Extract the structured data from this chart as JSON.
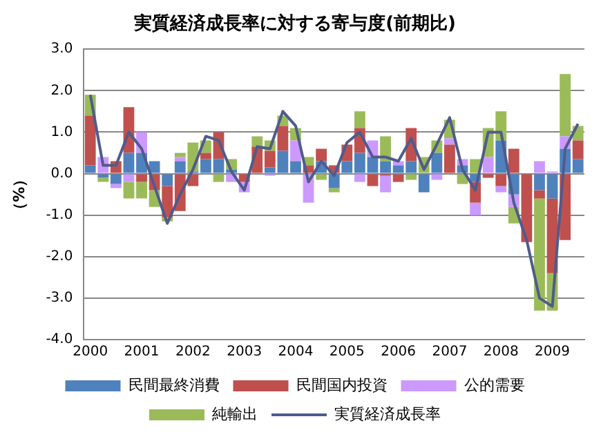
{
  "chart_data": {
    "type": "bar",
    "title": "実質経済成長率に対する寄与度(前期比)",
    "ylabel": "（%）",
    "categories": [
      "2000",
      null,
      null,
      null,
      "2001",
      null,
      null,
      null,
      "2002",
      null,
      null,
      null,
      "2003",
      null,
      null,
      null,
      "2004",
      null,
      null,
      null,
      "2005",
      null,
      null,
      null,
      "2006",
      null,
      null,
      null,
      "2007",
      null,
      null,
      null,
      "2008",
      null,
      null,
      null,
      "2009",
      null,
      null
    ],
    "stacked": true,
    "series": [
      {
        "name": "民間最終消費",
        "color": "#4f81bd",
        "values": [
          0.2,
          -0.1,
          -0.25,
          0.5,
          0.5,
          0.3,
          -0.3,
          0.3,
          0.05,
          0.35,
          0.35,
          0.1,
          0,
          0,
          0.15,
          0.55,
          0.3,
          0,
          0.3,
          -0.35,
          0.3,
          0.5,
          0.4,
          0.3,
          0.2,
          0.3,
          -0.45,
          0.5,
          0,
          0.2,
          -0.2,
          0,
          0.8,
          -0.5,
          0,
          -0.4,
          -0.6,
          0.6,
          0.35
        ]
      },
      {
        "name": "民間国内投資",
        "color": "#c0504d",
        "values": [
          1.2,
          0,
          0.3,
          1.1,
          -0.2,
          -0.4,
          -0.75,
          -0.9,
          -0.3,
          0.15,
          0.65,
          0,
          -0.2,
          0.65,
          0.4,
          0.6,
          0,
          0.2,
          0.3,
          0.2,
          0.4,
          0.6,
          -0.3,
          -0.05,
          -0.2,
          0.8,
          0,
          0,
          0.7,
          0,
          -0.5,
          -0.1,
          -0.3,
          0.6,
          -1.65,
          -0.2,
          -1.8,
          -1.6,
          0.45
        ]
      },
      {
        "name": "公的需要",
        "color": "#cc99ff",
        "values": [
          0,
          0.4,
          -0.1,
          -0.2,
          0.5,
          0,
          0,
          0.1,
          0,
          0,
          0,
          -0.2,
          -0.25,
          0,
          -0.05,
          0,
          0.5,
          -0.7,
          0,
          0,
          0,
          -0.2,
          0.4,
          -0.4,
          0.1,
          0,
          0,
          -0.15,
          0.15,
          0.15,
          -0.3,
          0.4,
          -0.15,
          -0.3,
          0,
          0.3,
          0.05,
          0.3,
          0
        ]
      },
      {
        "name": "純輸出",
        "color": "#9bbb59",
        "values": [
          0.5,
          -0.1,
          0,
          -0.4,
          -0.4,
          -0.4,
          -0.1,
          0.1,
          0.7,
          0.3,
          -0.2,
          0.25,
          0,
          0.25,
          0.25,
          0.25,
          0.3,
          0.2,
          -0.15,
          -0.1,
          0,
          0.4,
          0,
          0.6,
          0,
          -0.15,
          0.4,
          0.3,
          0.45,
          -0.25,
          0.35,
          0.7,
          0.7,
          -0.4,
          0,
          -2.7,
          -0.9,
          1.5,
          0.35
        ]
      },
      {
        "name": "実質経済成長率",
        "type": "line",
        "color": "#4f5b8c",
        "values": [
          1.9,
          0.2,
          0.2,
          1.0,
          0.6,
          -0.3,
          -1.2,
          -0.5,
          0.1,
          0.9,
          0.8,
          0.05,
          -0.4,
          0.65,
          0.6,
          1.5,
          1.15,
          -0.2,
          0.3,
          -0.05,
          0.75,
          1.0,
          0.4,
          0.4,
          0.3,
          0.85,
          0.1,
          0.7,
          1.35,
          0.1,
          -0.4,
          1.0,
          1.0,
          -0.7,
          -1.6,
          -3.0,
          -3.2,
          0.6,
          1.2
        ]
      }
    ],
    "ylim": [
      -4,
      3
    ],
    "yticks": [
      {
        "value": -4,
        "label": "-4.0"
      },
      {
        "value": -3,
        "label": "-3.0"
      },
      {
        "value": -2,
        "label": "-2.0"
      },
      {
        "value": -1,
        "label": "-1.0"
      },
      {
        "value": 0,
        "label": "0.0"
      },
      {
        "value": 1,
        "label": "1.0"
      },
      {
        "value": 2,
        "label": "2.0"
      },
      {
        "value": 3,
        "label": "3.0"
      }
    ],
    "grid": "y",
    "legend": "bottom",
    "marker": "none",
    "line_style": "solid"
  }
}
